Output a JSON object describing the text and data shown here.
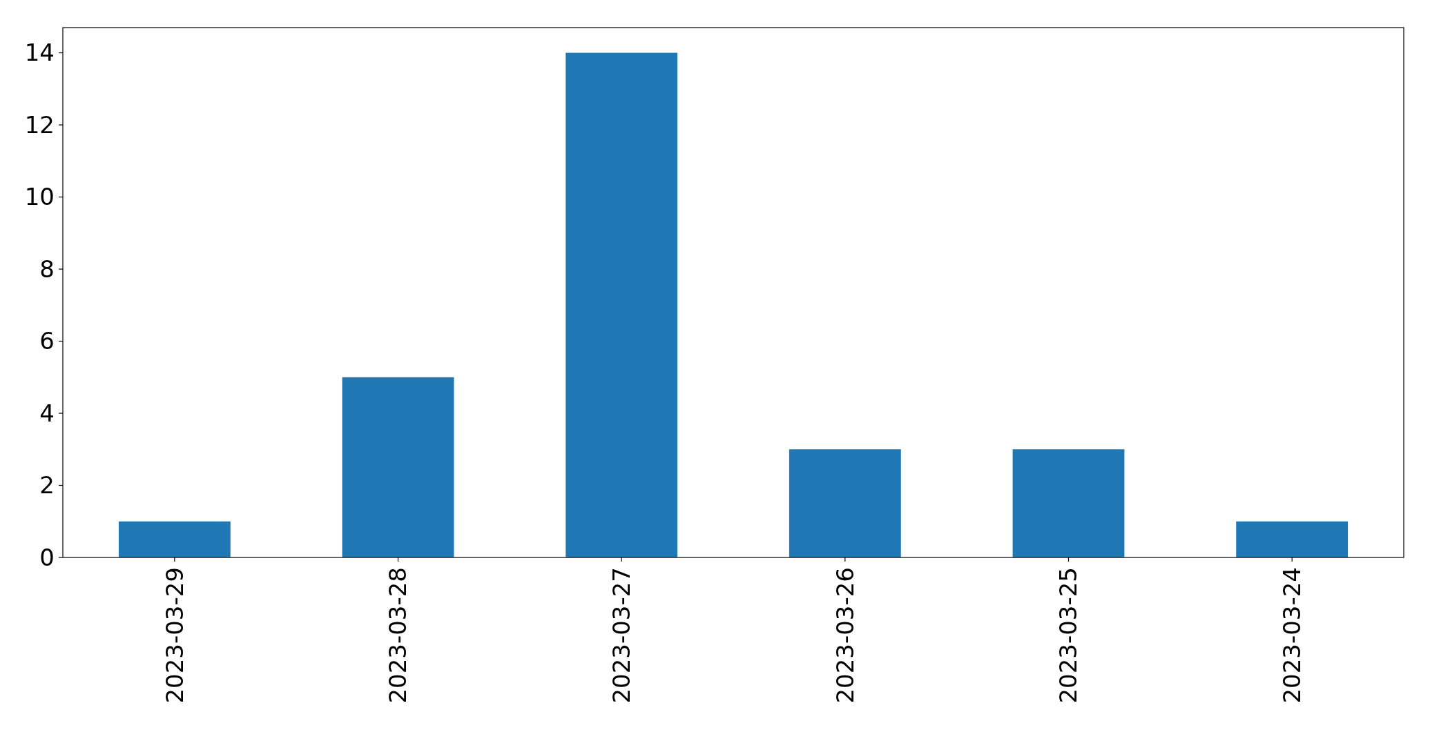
{
  "chart_data": {
    "type": "bar",
    "categories": [
      "2023-03-29",
      "2023-03-28",
      "2023-03-27",
      "2023-03-26",
      "2023-03-25",
      "2023-03-24"
    ],
    "values": [
      1,
      5,
      14,
      3,
      3,
      1
    ],
    "color": "#1f77b4",
    "ylim": [
      0,
      14.7
    ],
    "yticks": [
      0,
      2,
      4,
      6,
      8,
      10,
      12,
      14
    ],
    "grid": false
  }
}
